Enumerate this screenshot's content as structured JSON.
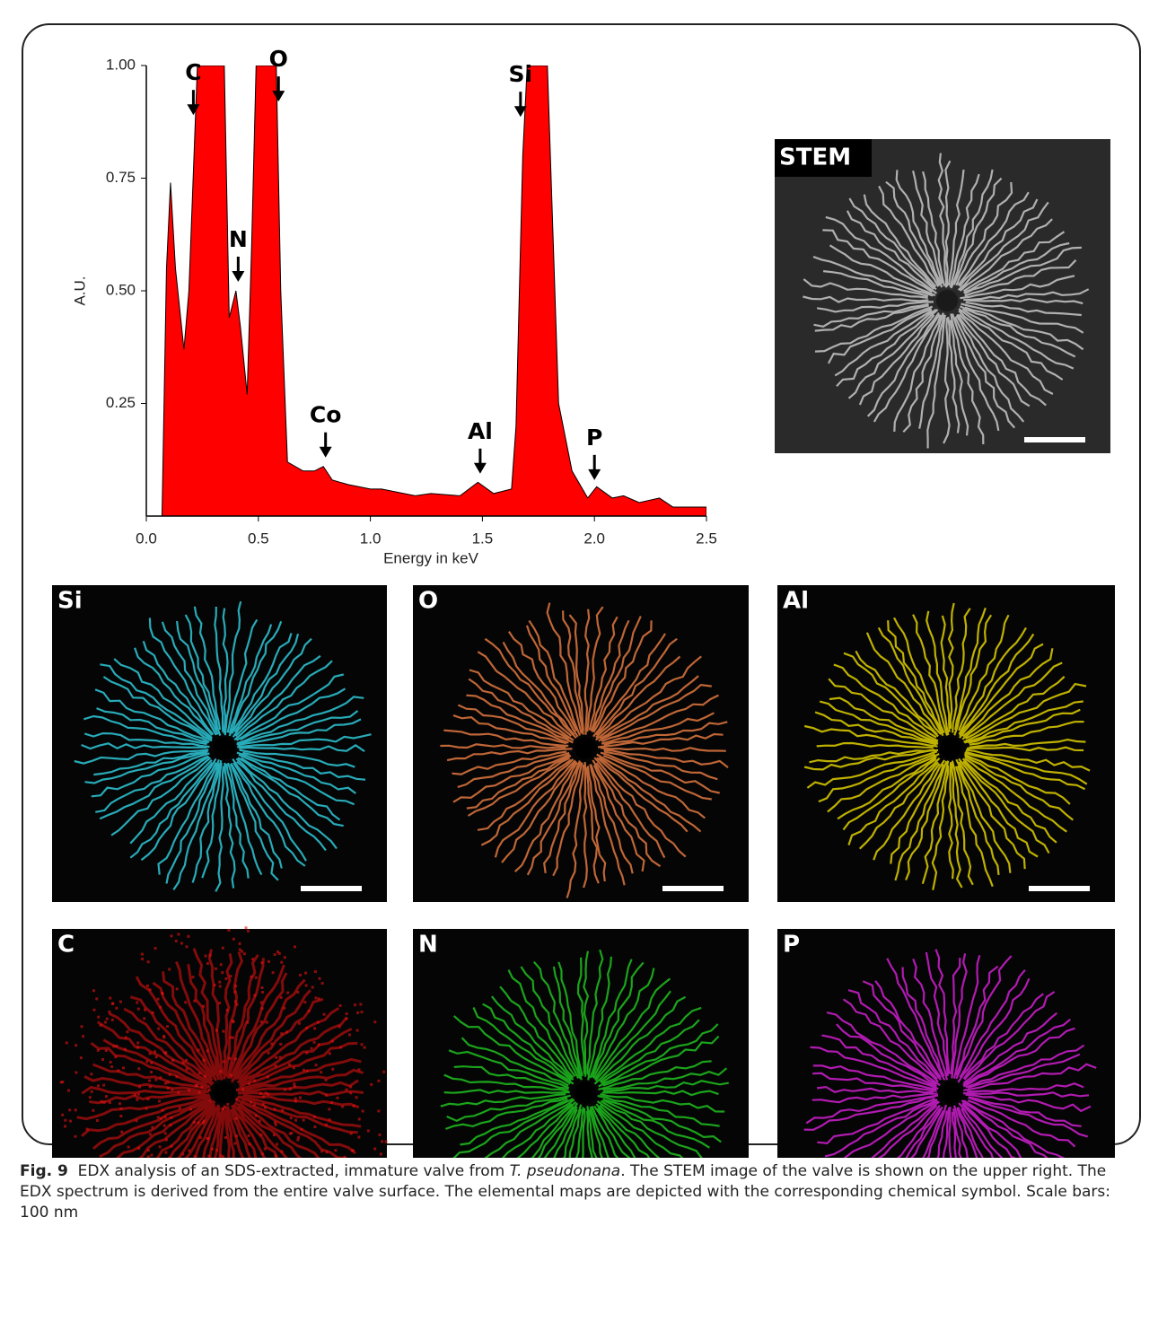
{
  "chart_data": {
    "type": "area",
    "x": [
      0.07,
      0.09,
      0.108,
      0.13,
      0.168,
      0.19,
      0.228,
      0.25,
      0.3,
      0.348,
      0.37,
      0.4,
      0.42,
      0.45,
      0.47,
      0.49,
      0.52,
      0.58,
      0.6,
      0.63,
      0.7,
      0.75,
      0.79,
      0.83,
      0.9,
      1.0,
      1.05,
      1.2,
      1.27,
      1.4,
      1.48,
      1.55,
      1.63,
      1.65,
      1.68,
      1.7,
      1.75,
      1.79,
      1.84,
      1.9,
      1.97,
      2.01,
      2.08,
      2.13,
      2.2,
      2.29,
      2.35,
      2.5
    ],
    "y": [
      0,
      0.55,
      0.74,
      0.55,
      0.37,
      0.5,
      1.0,
      1.0,
      1.0,
      1.0,
      0.44,
      0.5,
      0.42,
      0.27,
      0.6,
      1.0,
      1.0,
      1.0,
      0.5,
      0.12,
      0.1,
      0.1,
      0.11,
      0.08,
      0.07,
      0.06,
      0.06,
      0.045,
      0.05,
      0.045,
      0.075,
      0.05,
      0.06,
      0.2,
      0.8,
      1.0,
      1.0,
      1.0,
      0.25,
      0.1,
      0.04,
      0.065,
      0.04,
      0.045,
      0.03,
      0.04,
      0.02,
      0.02
    ],
    "color": "#ff0000",
    "xlabel": "Energy in keV",
    "ylabel": "A.U.",
    "xlim": [
      0,
      2.5
    ],
    "ylim": [
      0,
      1
    ],
    "xticks": [
      {
        "value": 0,
        "label": "0.0"
      },
      0.5,
      {
        "value": 1,
        "label": "1.0"
      },
      1.5,
      {
        "value": 2,
        "label": "2.0"
      },
      2.5
    ],
    "yticks": [
      0.25,
      {
        "value": 0.5,
        "label": "0.50"
      },
      0.75,
      {
        "value": 1,
        "label": "1.00"
      }
    ],
    "annotations": [
      {
        "text": "C",
        "x": 0.21,
        "y": 0.89
      },
      {
        "text": "O",
        "x": 0.59,
        "y": 0.92
      },
      {
        "text": "N",
        "x": 0.41,
        "y": 0.52
      },
      {
        "text": "Co",
        "x": 0.8,
        "y": 0.13
      },
      {
        "text": "Al",
        "x": 1.49,
        "y": 0.094
      },
      {
        "text": "Si",
        "x": 1.67,
        "y": 0.886
      },
      {
        "text": "P",
        "x": 2.0,
        "y": 0.08
      }
    ]
  },
  "figure": {
    "panels": [
      {
        "label": "STEM",
        "color": "#c8c8c8"
      },
      {
        "label": "Si",
        "color": "#2fc8d8"
      },
      {
        "label": "O",
        "color": "#e07840"
      },
      {
        "label": "Al",
        "color": "#e0d000"
      },
      {
        "label": "C",
        "color": "#e81010"
      },
      {
        "label": "N",
        "color": "#20c020"
      },
      {
        "label": "P",
        "color": "#d020d0"
      }
    ],
    "caption": {
      "label": "Fig. 9",
      "text_before": "EDX analysis of an SDS-extracted, immature valve from ",
      "species": "T. pseudonana",
      "text_after": ". The STEM image of the valve is shown on the upper right. The EDX spectrum is derived from the entire valve surface. The elemental maps are depicted with the corresponding chemical symbol. Scale bars: 100 nm"
    }
  }
}
